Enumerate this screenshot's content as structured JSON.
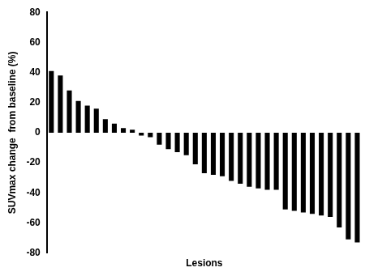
{
  "chart_data": {
    "type": "bar",
    "xlabel": "Lesions",
    "ylabel": "SUVmax change  from baseline (%)",
    "categories": [
      null,
      null,
      null,
      null,
      null,
      null,
      null,
      null,
      null,
      null,
      null,
      null,
      null,
      null,
      null,
      null,
      null,
      null,
      null,
      null,
      null,
      null,
      null,
      null,
      null,
      null,
      null,
      null,
      null,
      null,
      null,
      null,
      null,
      null,
      null
    ],
    "values": [
      41,
      38,
      28,
      21,
      18,
      16,
      9,
      6,
      3,
      2,
      -2,
      -3,
      -8,
      -11,
      -13,
      -15,
      -21,
      -27,
      -28,
      -29,
      -32,
      -34,
      -36,
      -37,
      -38,
      -38,
      -51,
      -52,
      -53,
      -54,
      -55,
      -56,
      -63,
      -71,
      -73
    ],
    "color": "#000000",
    "ylim": [
      -80,
      80
    ],
    "yticks": [
      -80,
      -60,
      -40,
      -20,
      0,
      20,
      40,
      60,
      80
    ],
    "grid": false,
    "tick_labels": "y"
  }
}
